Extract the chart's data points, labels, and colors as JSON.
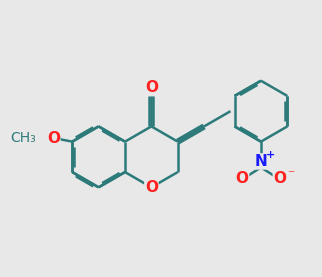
{
  "bg_color": "#e8e8e8",
  "bond_color": "#2d7a7a",
  "o_color": "#ff2020",
  "n_color": "#1a1aff",
  "bond_width": 1.8,
  "font_size": 11,
  "dbo": 0.022
}
